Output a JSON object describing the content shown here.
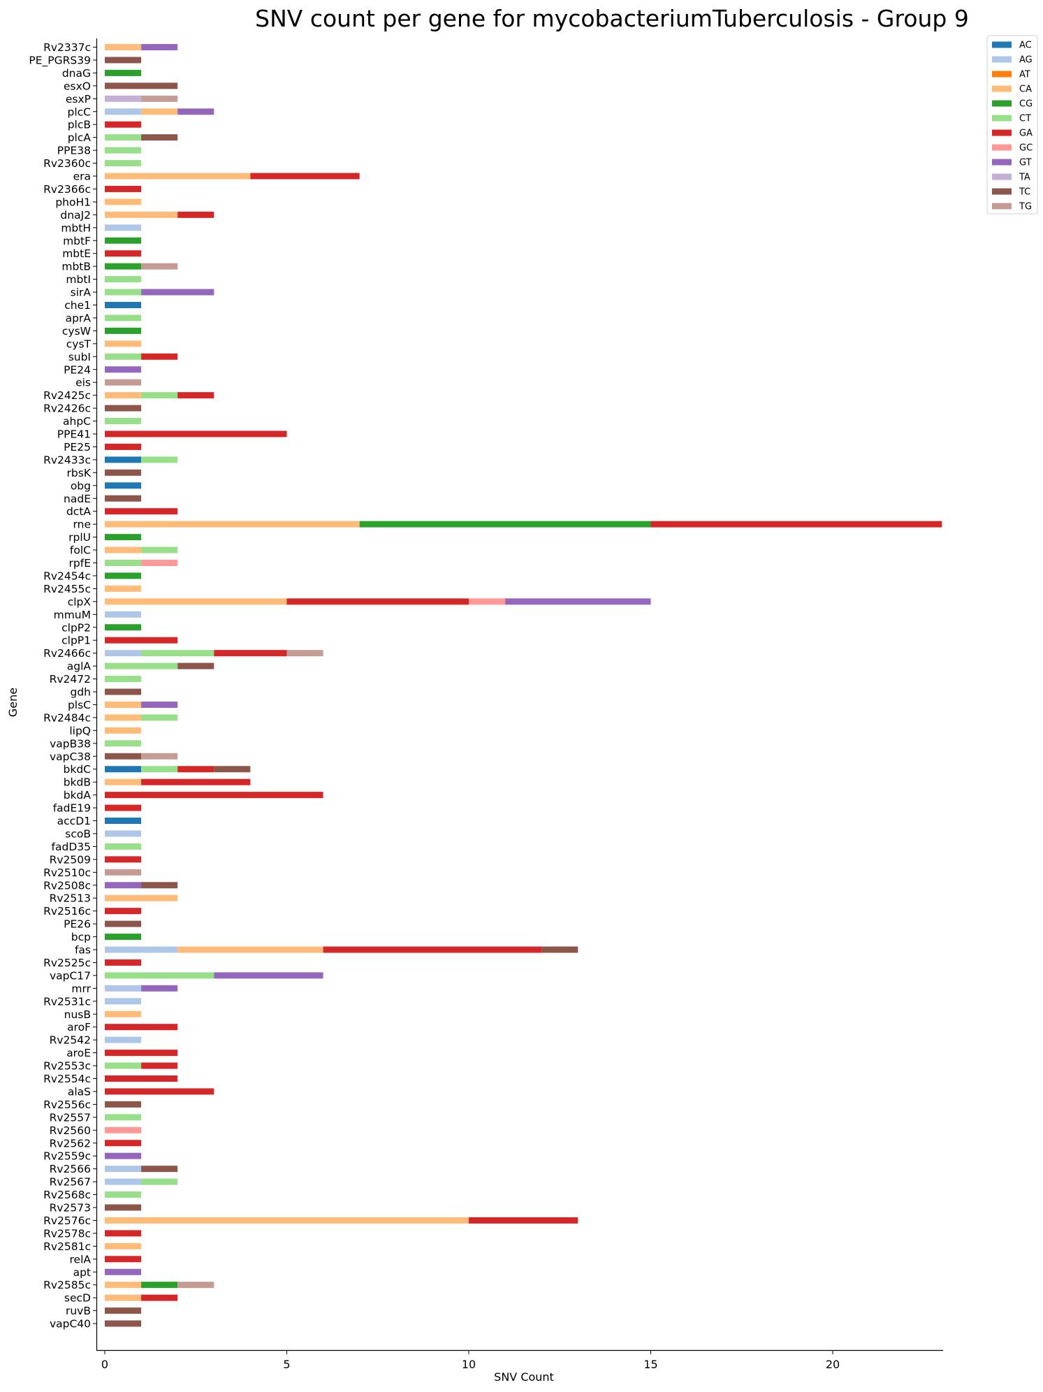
{
  "chart_data": {
    "type": "bar",
    "orientation": "horizontal",
    "stacked": true,
    "title": "SNV count per gene for mycobacteriumTuberculosis - Group 9",
    "xlabel": "SNV Count",
    "ylabel": "Gene",
    "xlim": [
      0,
      23
    ],
    "xticks": [
      0,
      5,
      10,
      15,
      20
    ],
    "grid": false,
    "legend_position": "top-right, outside",
    "series": [
      {
        "name": "AC",
        "color": "#1f77b4"
      },
      {
        "name": "AG",
        "color": "#aec7e8"
      },
      {
        "name": "AT",
        "color": "#ff7f0e"
      },
      {
        "name": "CA",
        "color": "#ffbb78"
      },
      {
        "name": "CG",
        "color": "#2ca02c"
      },
      {
        "name": "CT",
        "color": "#98df8a"
      },
      {
        "name": "GA",
        "color": "#d62728"
      },
      {
        "name": "GC",
        "color": "#ff9896"
      },
      {
        "name": "GT",
        "color": "#9467bd"
      },
      {
        "name": "TA",
        "color": "#c5b0d5"
      },
      {
        "name": "TC",
        "color": "#8c564b"
      },
      {
        "name": "TG",
        "color": "#c49c94"
      }
    ],
    "categories": [
      "Rv2337c",
      "PE_PGRS39",
      "dnaG",
      "esxO",
      "esxP",
      "plcC",
      "plcB",
      "plcA",
      "PPE38",
      "Rv2360c",
      "era",
      "Rv2366c",
      "phoH1",
      "dnaJ2",
      "mbtH",
      "mbtF",
      "mbtE",
      "mbtB",
      "mbtI",
      "sirA",
      "che1",
      "aprA",
      "cysW",
      "cysT",
      "subI",
      "PE24",
      "eis",
      "Rv2425c",
      "Rv2426c",
      "ahpC",
      "PPE41",
      "PE25",
      "Rv2433c",
      "rbsK",
      "obg",
      "nadE",
      "dctA",
      "rne",
      "rplU",
      "folC",
      "rpfE",
      "Rv2454c",
      "Rv2455c",
      "clpX",
      "mmuM",
      "clpP2",
      "clpP1",
      "Rv2466c",
      "aglA",
      "Rv2472",
      "gdh",
      "plsC",
      "Rv2484c",
      "lipQ",
      "vapB38",
      "vapC38",
      "bkdC",
      "bkdB",
      "bkdA",
      "fadE19",
      "accD1",
      "scoB",
      "fadD35",
      "Rv2509",
      "Rv2510c",
      "Rv2508c",
      "Rv2513",
      "Rv2516c",
      "PE26",
      "bcp",
      "fas",
      "Rv2525c",
      "vapC17",
      "mrr",
      "Rv2531c",
      "nusB",
      "aroF",
      "Rv2542",
      "aroE",
      "Rv2553c",
      "Rv2554c",
      "alaS",
      "Rv2556c",
      "Rv2557",
      "Rv2560",
      "Rv2562",
      "Rv2559c",
      "Rv2566",
      "Rv2567",
      "Rv2568c",
      "Rv2573",
      "Rv2576c",
      "Rv2578c",
      "Rv2581c",
      "relA",
      "apt",
      "Rv2585c",
      "secD",
      "ruvB",
      "vapC40"
    ],
    "stacks": [
      [
        [
          "CA",
          1
        ],
        [
          "GT",
          1
        ]
      ],
      [
        [
          "TC",
          1
        ]
      ],
      [
        [
          "CG",
          1
        ]
      ],
      [
        [
          "TC",
          2
        ]
      ],
      [
        [
          "TA",
          1
        ],
        [
          "TG",
          1
        ]
      ],
      [
        [
          "AG",
          1
        ],
        [
          "CA",
          1
        ],
        [
          "GT",
          1
        ]
      ],
      [
        [
          "GA",
          1
        ]
      ],
      [
        [
          "CT",
          1
        ],
        [
          "TC",
          1
        ]
      ],
      [
        [
          "CT",
          1
        ]
      ],
      [
        [
          "CT",
          1
        ]
      ],
      [
        [
          "CA",
          4
        ],
        [
          "GA",
          3
        ]
      ],
      [
        [
          "GA",
          1
        ]
      ],
      [
        [
          "CA",
          1
        ]
      ],
      [
        [
          "CA",
          2
        ],
        [
          "GA",
          1
        ]
      ],
      [
        [
          "AG",
          1
        ]
      ],
      [
        [
          "CG",
          1
        ]
      ],
      [
        [
          "GA",
          1
        ]
      ],
      [
        [
          "CG",
          1
        ],
        [
          "TG",
          1
        ]
      ],
      [
        [
          "CT",
          1
        ]
      ],
      [
        [
          "CT",
          1
        ],
        [
          "GT",
          2
        ]
      ],
      [
        [
          "AC",
          1
        ]
      ],
      [
        [
          "CT",
          1
        ]
      ],
      [
        [
          "CG",
          1
        ]
      ],
      [
        [
          "CA",
          1
        ]
      ],
      [
        [
          "CT",
          1
        ],
        [
          "GA",
          1
        ]
      ],
      [
        [
          "GT",
          1
        ]
      ],
      [
        [
          "TG",
          1
        ]
      ],
      [
        [
          "CA",
          1
        ],
        [
          "CT",
          1
        ],
        [
          "GA",
          1
        ]
      ],
      [
        [
          "TC",
          1
        ]
      ],
      [
        [
          "CT",
          1
        ]
      ],
      [
        [
          "GA",
          5
        ]
      ],
      [
        [
          "GA",
          1
        ]
      ],
      [
        [
          "AC",
          1
        ],
        [
          "CT",
          1
        ]
      ],
      [
        [
          "TC",
          1
        ]
      ],
      [
        [
          "AC",
          1
        ]
      ],
      [
        [
          "TC",
          1
        ]
      ],
      [
        [
          "GA",
          2
        ]
      ],
      [
        [
          "CA",
          7
        ],
        [
          "CG",
          8
        ],
        [
          "GA",
          8
        ]
      ],
      [
        [
          "CG",
          1
        ]
      ],
      [
        [
          "CA",
          1
        ],
        [
          "CT",
          1
        ]
      ],
      [
        [
          "CT",
          1
        ],
        [
          "GC",
          1
        ]
      ],
      [
        [
          "CG",
          1
        ]
      ],
      [
        [
          "CA",
          1
        ]
      ],
      [
        [
          "CA",
          5
        ],
        [
          "GA",
          5
        ],
        [
          "GC",
          1
        ],
        [
          "GT",
          4
        ]
      ],
      [
        [
          "AG",
          1
        ]
      ],
      [
        [
          "CG",
          1
        ]
      ],
      [
        [
          "GA",
          2
        ]
      ],
      [
        [
          "AG",
          1
        ],
        [
          "CT",
          2
        ],
        [
          "GA",
          2
        ],
        [
          "TG",
          1
        ]
      ],
      [
        [
          "CT",
          2
        ],
        [
          "TC",
          1
        ]
      ],
      [
        [
          "CT",
          1
        ]
      ],
      [
        [
          "TC",
          1
        ]
      ],
      [
        [
          "CA",
          1
        ],
        [
          "GT",
          1
        ]
      ],
      [
        [
          "CA",
          1
        ],
        [
          "CT",
          1
        ]
      ],
      [
        [
          "CA",
          1
        ]
      ],
      [
        [
          "CT",
          1
        ]
      ],
      [
        [
          "TC",
          1
        ],
        [
          "TG",
          1
        ]
      ],
      [
        [
          "AC",
          1
        ],
        [
          "CT",
          1
        ],
        [
          "GA",
          1
        ],
        [
          "TC",
          1
        ]
      ],
      [
        [
          "CA",
          1
        ],
        [
          "GA",
          3
        ]
      ],
      [
        [
          "GA",
          6
        ]
      ],
      [
        [
          "GA",
          1
        ]
      ],
      [
        [
          "AC",
          1
        ]
      ],
      [
        [
          "AG",
          1
        ]
      ],
      [
        [
          "CT",
          1
        ]
      ],
      [
        [
          "GA",
          1
        ]
      ],
      [
        [
          "TG",
          1
        ]
      ],
      [
        [
          "GT",
          1
        ],
        [
          "TC",
          1
        ]
      ],
      [
        [
          "CA",
          2
        ]
      ],
      [
        [
          "GA",
          1
        ]
      ],
      [
        [
          "TC",
          1
        ]
      ],
      [
        [
          "CG",
          1
        ]
      ],
      [
        [
          "AG",
          2
        ],
        [
          "CA",
          4
        ],
        [
          "GA",
          6
        ],
        [
          "TC",
          1
        ]
      ],
      [
        [
          "GA",
          1
        ]
      ],
      [
        [
          "CT",
          3
        ],
        [
          "GT",
          3
        ]
      ],
      [
        [
          "AG",
          1
        ],
        [
          "GT",
          1
        ]
      ],
      [
        [
          "AG",
          1
        ]
      ],
      [
        [
          "CA",
          1
        ]
      ],
      [
        [
          "GA",
          2
        ]
      ],
      [
        [
          "AG",
          1
        ]
      ],
      [
        [
          "GA",
          2
        ]
      ],
      [
        [
          "CT",
          1
        ],
        [
          "GA",
          1
        ]
      ],
      [
        [
          "GA",
          2
        ]
      ],
      [
        [
          "GA",
          3
        ]
      ],
      [
        [
          "TC",
          1
        ]
      ],
      [
        [
          "CT",
          1
        ]
      ],
      [
        [
          "GC",
          1
        ]
      ],
      [
        [
          "GA",
          1
        ]
      ],
      [
        [
          "GT",
          1
        ]
      ],
      [
        [
          "AG",
          1
        ],
        [
          "TC",
          1
        ]
      ],
      [
        [
          "AG",
          1
        ],
        [
          "CT",
          1
        ]
      ],
      [
        [
          "CT",
          1
        ]
      ],
      [
        [
          "TC",
          1
        ]
      ],
      [
        [
          "CA",
          10
        ],
        [
          "GA",
          3
        ]
      ],
      [
        [
          "GA",
          1
        ]
      ],
      [
        [
          "CA",
          1
        ]
      ],
      [
        [
          "GA",
          1
        ]
      ],
      [
        [
          "GT",
          1
        ]
      ],
      [
        [
          "CA",
          1
        ],
        [
          "CG",
          1
        ],
        [
          "TG",
          1
        ]
      ],
      [
        [
          "CA",
          1
        ],
        [
          "GA",
          1
        ]
      ],
      [
        [
          "TC",
          1
        ]
      ],
      [
        [
          "TC",
          1
        ]
      ]
    ]
  }
}
